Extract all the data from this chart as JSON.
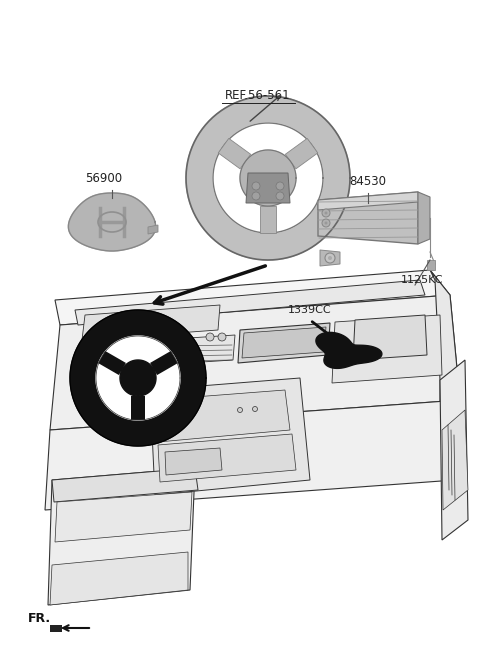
{
  "bg_color": "#ffffff",
  "labels": {
    "ref56561": "REF.56-561",
    "part56900": "56900",
    "part84530": "84530",
    "part1339CC": "1339CC",
    "part1125KC": "1125KC",
    "fr_label": "FR."
  },
  "font_size_labels": 8.5,
  "lc": "#333333",
  "black": "#111111",
  "gray1": "#aaaaaa",
  "gray2": "#888888",
  "gray3": "#cccccc",
  "gray4": "#b8b8b8",
  "gray5": "#d8d8d8",
  "gray6": "#c5c5c5"
}
